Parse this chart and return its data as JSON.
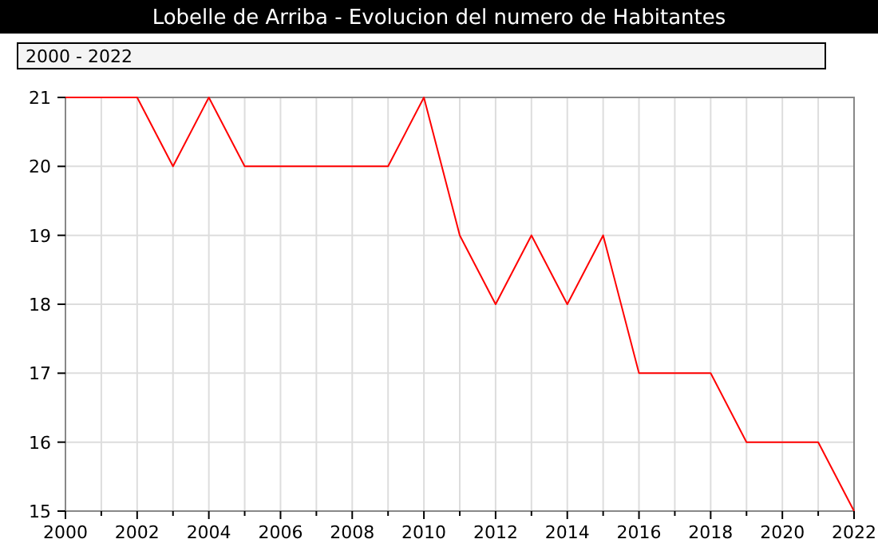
{
  "chart_data": {
    "type": "line",
    "title": "Lobelle de Arriba - Evolucion del numero de Habitantes",
    "annotations": [
      "2000 - 2022"
    ],
    "x": [
      2000,
      2001,
      2002,
      2003,
      2004,
      2005,
      2006,
      2007,
      2008,
      2009,
      2010,
      2011,
      2012,
      2013,
      2014,
      2015,
      2016,
      2017,
      2018,
      2019,
      2020,
      2021,
      2022
    ],
    "series": [
      {
        "color": "#ff0000",
        "values": [
          21,
          21,
          21,
          20,
          21,
          20,
          20,
          20,
          20,
          20,
          21,
          19,
          18,
          19,
          18,
          19,
          17,
          17,
          17,
          16,
          16,
          16,
          15
        ]
      }
    ],
    "xlim": [
      2000,
      2022
    ],
    "xticks": [
      2000,
      {
        "value": 2001,
        "label": null
      },
      2002,
      {
        "value": 2003,
        "label": null
      },
      2004,
      {
        "value": 2005,
        "label": null
      },
      2006,
      {
        "value": 2007,
        "label": null
      },
      2008,
      {
        "value": 2009,
        "label": null
      },
      2010,
      {
        "value": 2011,
        "label": null
      },
      2012,
      {
        "value": 2013,
        "label": null
      },
      2014,
      {
        "value": 2015,
        "label": null
      },
      2016,
      {
        "value": 2017,
        "label": null
      },
      2018,
      {
        "value": 2019,
        "label": null
      },
      2020,
      {
        "value": 2021,
        "label": null
      },
      2022
    ],
    "ylim": [
      15,
      21
    ],
    "yticks": [
      15,
      16,
      17,
      18,
      19,
      20,
      21
    ],
    "grid": true,
    "marker": "none",
    "line_style": "solid"
  }
}
